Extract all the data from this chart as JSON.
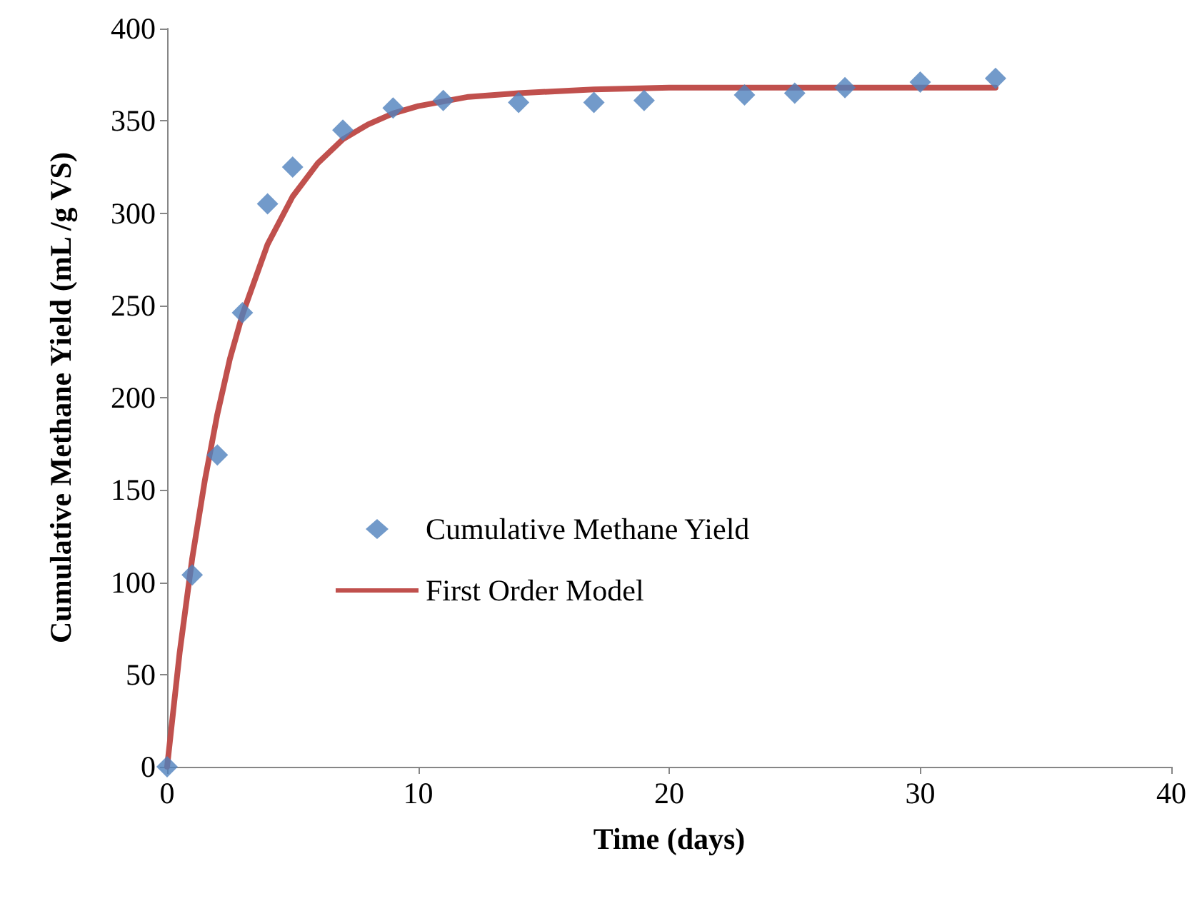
{
  "chart_data": {
    "type": "scatter",
    "xlabel": "Time (days)",
    "ylabel": "Cumulative Methane Yield (mL /g VS)",
    "xlim": [
      0,
      40
    ],
    "xticks": [
      0,
      10,
      20,
      30,
      40
    ],
    "ylim": [
      0,
      400
    ],
    "yticks": [
      0,
      50,
      100,
      150,
      200,
      250,
      300,
      350,
      400
    ],
    "grid": false,
    "legend": "center",
    "series": [
      {
        "name": "Cumulative Methane Yield",
        "marker": "diamond",
        "color": "#4f81bd",
        "x": [
          0,
          1,
          2,
          3,
          4,
          5,
          7,
          9,
          11,
          14,
          17,
          19,
          23,
          25,
          27,
          30,
          33
        ],
        "values": [
          0,
          104,
          169,
          246,
          305,
          325,
          345,
          357,
          361,
          360,
          360,
          361,
          364,
          365,
          368,
          371,
          373
        ]
      },
      {
        "name": "First Order Model",
        "type": "line",
        "marker": "none",
        "line_style": "solid",
        "color": "#c0504d",
        "x": [
          0,
          0.5,
          1,
          1.5,
          2,
          2.5,
          3,
          4,
          5,
          6,
          7,
          8,
          9,
          10,
          12,
          14,
          17,
          20,
          25,
          33
        ],
        "values": [
          0,
          62,
          113,
          155,
          191,
          221,
          245,
          283,
          309,
          327,
          340,
          348,
          354,
          358,
          363,
          365,
          367,
          368,
          368,
          368
        ]
      }
    ]
  }
}
